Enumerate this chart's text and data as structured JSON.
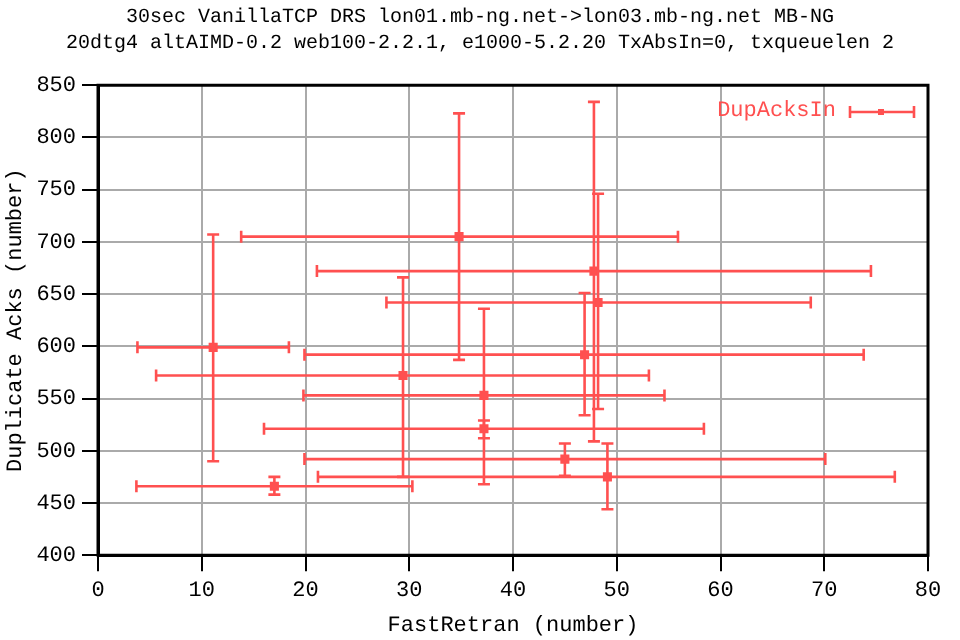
{
  "chart_data": {
    "type": "scatter",
    "title": "30sec VanillaTCP DRS lon01.mb-ng.net->lon03.mb-ng.net MB-NG",
    "subtitle": "20dtg4 altAIMD-0.2 web100-2.2.1, e1000-5.2.20 TxAbsIn=0, txqueuelen 2",
    "xlabel": "FastRetran (number)",
    "ylabel": "Duplicate Acks (number)",
    "xlim": [
      0,
      80
    ],
    "xticks": [
      0,
      10,
      20,
      30,
      40,
      50,
      60,
      70,
      80
    ],
    "ylim": [
      400,
      850
    ],
    "yticks": [
      400,
      450,
      500,
      550,
      600,
      650,
      700,
      750,
      800,
      850
    ],
    "grid": true,
    "legend": "top right",
    "marker": "square",
    "series": [
      {
        "name": "DupAcksIn",
        "color": "#ff5050",
        "x": [
          34.8,
          47.8,
          48.2,
          46.9,
          11.1,
          29.4,
          37.2,
          37.2,
          17.0,
          45.0,
          49.1
        ],
        "values": [
          705,
          672,
          642,
          592,
          599,
          572,
          553,
          521,
          466,
          492,
          475
        ],
        "errors": [
          [
            587,
            823
          ],
          [
            509,
            834
          ],
          [
            540,
            746
          ],
          [
            534,
            651
          ],
          [
            490,
            707
          ],
          [
            475,
            666
          ],
          [
            468,
            636
          ],
          [
            512,
            529
          ],
          [
            458,
            475
          ],
          [
            476,
            507
          ],
          [
            444,
            507
          ]
        ],
        "xerrors": [
          [
            13.8,
            55.9
          ],
          [
            21.1,
            74.5
          ],
          [
            27.8,
            68.7
          ],
          [
            19.9,
            73.8
          ],
          [
            3.8,
            18.4
          ],
          [
            5.6,
            53.1
          ],
          [
            19.8,
            54.6
          ],
          [
            16.0,
            58.4
          ],
          [
            3.7,
            30.3
          ],
          [
            19.9,
            70.1
          ],
          [
            21.2,
            76.8
          ]
        ]
      }
    ]
  }
}
